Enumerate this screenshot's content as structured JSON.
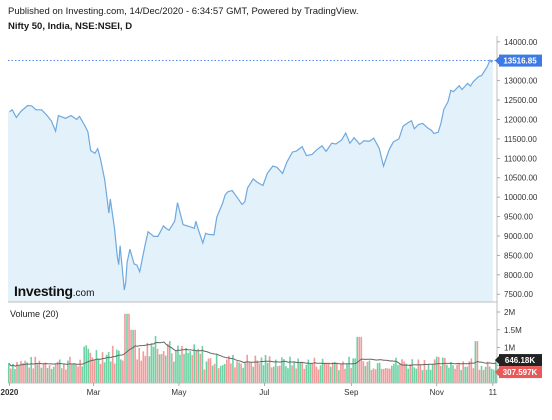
{
  "header": {
    "published": "Published on Investing.com, 14/Dec/2020 - 6:34:57 GMT, Powered by TradingView.",
    "instrument": "Nifty 50, India, NSE:NSEI, D"
  },
  "logo": {
    "brand": "Investing",
    "suffix": ".com"
  },
  "colors": {
    "line": "#6ea9df",
    "fill": "#e3f1fb",
    "up_bar": "#6dd3a4",
    "down_bar": "#f19b9b",
    "ma": "#666666",
    "tag": "#3d7ae6",
    "dark_tag": "#222222",
    "red_tag": "#e65a5a"
  },
  "chart_data": [
    {
      "type": "area",
      "x_ticks": [
        "2020",
        "Mar",
        "May",
        "Jul",
        "Sep",
        "Nov",
        "11"
      ],
      "y_ticks": [
        7500,
        8000,
        8500,
        9000,
        9500,
        10000,
        10500,
        11000,
        11500,
        12000,
        12500,
        13000,
        13500,
        14000
      ],
      "y_tick_labels": [
        "7500.00",
        "8000.00",
        "8500.00",
        "9000.00",
        "9500.00",
        "10000.00",
        "10500.00",
        "11000.00",
        "11500.00",
        "12000.00",
        "12500.00",
        "13000.00",
        "13500.00",
        "14000.00"
      ],
      "ylim": [
        7300,
        14150
      ],
      "last_value": 13516.85,
      "last_label": "13516.85",
      "points": [
        [
          "2020-01-01",
          12200
        ],
        [
          "2020-01-03",
          12250
        ],
        [
          "2020-01-06",
          12050
        ],
        [
          "2020-01-09",
          12200
        ],
        [
          "2020-01-14",
          12360
        ],
        [
          "2020-01-17",
          12350
        ],
        [
          "2020-01-20",
          12250
        ],
        [
          "2020-01-24",
          12250
        ],
        [
          "2020-01-28",
          12100
        ],
        [
          "2020-01-31",
          11960
        ],
        [
          "2020-02-03",
          11700
        ],
        [
          "2020-02-05",
          12100
        ],
        [
          "2020-02-10",
          12030
        ],
        [
          "2020-02-14",
          12100
        ],
        [
          "2020-02-18",
          12000
        ],
        [
          "2020-02-20",
          12080
        ],
        [
          "2020-02-24",
          11830
        ],
        [
          "2020-02-26",
          11680
        ],
        [
          "2020-02-28",
          11200
        ],
        [
          "2020-03-02",
          11130
        ],
        [
          "2020-03-04",
          11250
        ],
        [
          "2020-03-06",
          10980
        ],
        [
          "2020-03-09",
          10450
        ],
        [
          "2020-03-12",
          9590
        ],
        [
          "2020-03-13",
          9950
        ],
        [
          "2020-03-16",
          9200
        ],
        [
          "2020-03-18",
          8470
        ],
        [
          "2020-03-19",
          8260
        ],
        [
          "2020-03-20",
          8750
        ],
        [
          "2020-03-23",
          7610
        ],
        [
          "2020-03-24",
          7800
        ],
        [
          "2020-03-25",
          8320
        ],
        [
          "2020-03-27",
          8660
        ],
        [
          "2020-03-30",
          8280
        ],
        [
          "2020-04-01",
          8250
        ],
        [
          "2020-04-03",
          8080
        ],
        [
          "2020-04-07",
          8790
        ],
        [
          "2020-04-09",
          9110
        ],
        [
          "2020-04-13",
          8990
        ],
        [
          "2020-04-16",
          8990
        ],
        [
          "2020-04-20",
          9260
        ],
        [
          "2020-04-22",
          9190
        ],
        [
          "2020-04-24",
          9150
        ],
        [
          "2020-04-28",
          9380
        ],
        [
          "2020-04-30",
          9860
        ],
        [
          "2020-05-04",
          9290
        ],
        [
          "2020-05-06",
          9270
        ],
        [
          "2020-05-08",
          9250
        ],
        [
          "2020-05-12",
          9200
        ],
        [
          "2020-05-13",
          9380
        ],
        [
          "2020-05-15",
          9140
        ],
        [
          "2020-05-18",
          8820
        ],
        [
          "2020-05-20",
          9070
        ],
        [
          "2020-05-22",
          9040
        ],
        [
          "2020-05-26",
          9030
        ],
        [
          "2020-05-28",
          9490
        ],
        [
          "2020-06-01",
          9830
        ],
        [
          "2020-06-03",
          10060
        ],
        [
          "2020-06-05",
          10140
        ],
        [
          "2020-06-08",
          10170
        ],
        [
          "2020-06-12",
          9970
        ],
        [
          "2020-06-15",
          9810
        ],
        [
          "2020-06-17",
          9880
        ],
        [
          "2020-06-19",
          10240
        ],
        [
          "2020-06-23",
          10470
        ],
        [
          "2020-06-26",
          10380
        ],
        [
          "2020-06-30",
          10300
        ],
        [
          "2020-07-03",
          10610
        ],
        [
          "2020-07-07",
          10800
        ],
        [
          "2020-07-10",
          10770
        ],
        [
          "2020-07-14",
          10610
        ],
        [
          "2020-07-17",
          10900
        ],
        [
          "2020-07-21",
          11160
        ],
        [
          "2020-07-24",
          11190
        ],
        [
          "2020-07-28",
          11300
        ],
        [
          "2020-07-31",
          11070
        ],
        [
          "2020-08-04",
          11100
        ],
        [
          "2020-08-07",
          11210
        ],
        [
          "2020-08-11",
          11320
        ],
        [
          "2020-08-14",
          11180
        ],
        [
          "2020-08-18",
          11390
        ],
        [
          "2020-08-21",
          11370
        ],
        [
          "2020-08-25",
          11470
        ],
        [
          "2020-08-28",
          11650
        ],
        [
          "2020-08-31",
          11390
        ],
        [
          "2020-09-03",
          11530
        ],
        [
          "2020-09-07",
          11360
        ],
        [
          "2020-09-10",
          11450
        ],
        [
          "2020-09-14",
          11440
        ],
        [
          "2020-09-17",
          11520
        ],
        [
          "2020-09-21",
          11250
        ],
        [
          "2020-09-24",
          10800
        ],
        [
          "2020-09-28",
          11220
        ],
        [
          "2020-10-01",
          11420
        ],
        [
          "2020-10-05",
          11500
        ],
        [
          "2020-10-08",
          11830
        ],
        [
          "2020-10-12",
          11930
        ],
        [
          "2020-10-14",
          11970
        ],
        [
          "2020-10-16",
          11760
        ],
        [
          "2020-10-19",
          11870
        ],
        [
          "2020-10-22",
          11900
        ],
        [
          "2020-10-26",
          11770
        ],
        [
          "2020-10-28",
          11730
        ],
        [
          "2020-10-30",
          11640
        ],
        [
          "2020-11-02",
          11670
        ],
        [
          "2020-11-04",
          11910
        ],
        [
          "2020-11-06",
          12260
        ],
        [
          "2020-11-09",
          12460
        ],
        [
          "2020-11-11",
          12750
        ],
        [
          "2020-11-13",
          12720
        ],
        [
          "2020-11-17",
          12870
        ],
        [
          "2020-11-19",
          12770
        ],
        [
          "2020-11-23",
          12930
        ],
        [
          "2020-11-25",
          12860
        ],
        [
          "2020-11-27",
          12970
        ],
        [
          "2020-12-01",
          13110
        ],
        [
          "2020-12-03",
          13130
        ],
        [
          "2020-12-07",
          13360
        ],
        [
          "2020-12-09",
          13530
        ],
        [
          "2020-12-10",
          13480
        ],
        [
          "2020-12-11",
          13516.85
        ]
      ]
    },
    {
      "type": "bar",
      "title": "Volume (20)",
      "y_ticks": [
        0,
        500000,
        1000000,
        1500000,
        2000000
      ],
      "y_tick_labels": [
        "0",
        "500K",
        "1M",
        "1.5M",
        "2M"
      ],
      "ylim": [
        0,
        2000000
      ],
      "last_volume_label": "307.597K",
      "ma_label": "646.18K"
    }
  ]
}
